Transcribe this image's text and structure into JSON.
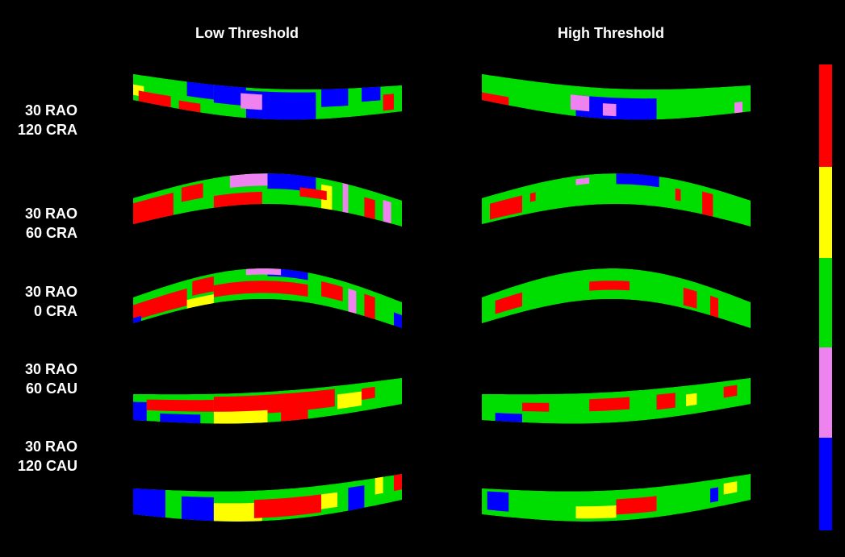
{
  "columns": [
    "Low Threshold",
    "High Threshold"
  ],
  "rows": [
    {
      "line1": "30 RAO",
      "line2": "120 CRA"
    },
    {
      "line1": "30 RAO",
      "line2": "60 CRA"
    },
    {
      "line1": "30 RAO",
      "line2": "0 CRA"
    },
    {
      "line1": "30 RAO",
      "line2": "60 CAU"
    },
    {
      "line1": "30 RAO",
      "line2": "120 CAU"
    }
  ]
}
